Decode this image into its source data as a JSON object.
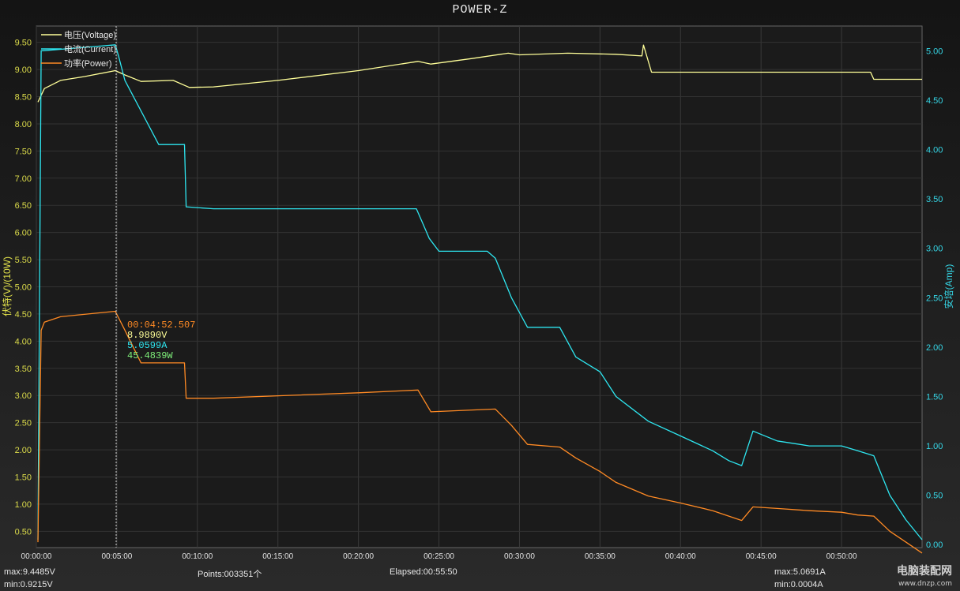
{
  "app_title": "POWER-Z",
  "chart_data": {
    "type": "line",
    "title": "POWER-Z",
    "xlabel": "",
    "ylabel_left": "伏特(V)/(10W)",
    "ylabel_right": "安培(Amp)",
    "xlim_min": [
      0,
      55
    ],
    "ylim_left": [
      0.2,
      9.8
    ],
    "ylim_right": [
      -0.03,
      5.25
    ],
    "x_ticks": [
      "00:00:00",
      "00:05:00",
      "00:10:00",
      "00:15:00",
      "00:20:00",
      "00:25:00",
      "00:30:00",
      "00:35:00",
      "00:40:00",
      "00:45:00",
      "00:50:00"
    ],
    "y_ticks_left": [
      "0.50",
      "1.00",
      "1.50",
      "2.00",
      "2.50",
      "3.00",
      "3.50",
      "4.00",
      "4.50",
      "5.00",
      "5.50",
      "6.00",
      "6.50",
      "7.00",
      "7.50",
      "8.00",
      "8.50",
      "9.00",
      "9.50"
    ],
    "y_ticks_right": [
      "0.00",
      "0.50",
      "1.00",
      "1.50",
      "2.00",
      "2.50",
      "3.00",
      "3.50",
      "4.00",
      "4.50",
      "5.00"
    ],
    "legend": [
      "电压(Voltage)",
      "电流(Current)",
      "功率(Power)"
    ],
    "legend_position": "top-left",
    "grid": true,
    "colors": {
      "voltage": "#ffff99",
      "current": "#2ee6f0",
      "power": "#ff8a24"
    },
    "series": [
      {
        "name": "电压(Voltage)",
        "axis": "left",
        "x": [
          0.1,
          0.5,
          1.5,
          3,
          4.9,
          5.5,
          6.5,
          8.5,
          9.5,
          11,
          15,
          20,
          23.7,
          24.5,
          27,
          29.3,
          30,
          33,
          36,
          37.6,
          37.7,
          38.2,
          40,
          45,
          50,
          51.8,
          52,
          55
        ],
        "y": [
          8.4,
          8.65,
          8.8,
          8.87,
          8.98,
          8.9,
          8.78,
          8.8,
          8.67,
          8.68,
          8.8,
          8.98,
          9.15,
          9.1,
          9.2,
          9.3,
          9.27,
          9.3,
          9.28,
          9.25,
          9.45,
          8.95,
          8.95,
          8.95,
          8.95,
          8.95,
          8.82,
          8.82
        ]
      },
      {
        "name": "电流(Current)",
        "axis": "right",
        "x": [
          0.1,
          0.3,
          0.4,
          4.9,
          5.1,
          5.5,
          7.6,
          9.2,
          9.3,
          11,
          20,
          23.6,
          24,
          24.4,
          25,
          28,
          28.5,
          29.5,
          30.5,
          32.5,
          33.5,
          35,
          36,
          38,
          40,
          42,
          43,
          43.8,
          44.5,
          46,
          48,
          50,
          51,
          52,
          53,
          54,
          55
        ],
        "y": [
          0.05,
          5.0,
          5.0,
          5.06,
          4.95,
          4.7,
          4.05,
          4.05,
          3.42,
          3.4,
          3.4,
          3.4,
          3.25,
          3.1,
          2.97,
          2.97,
          2.9,
          2.5,
          2.2,
          2.2,
          1.9,
          1.75,
          1.5,
          1.25,
          1.1,
          0.95,
          0.85,
          0.8,
          1.15,
          1.05,
          1.0,
          1.0,
          0.95,
          0.9,
          0.5,
          0.25,
          0.05
        ]
      },
      {
        "name": "功率(Power)",
        "axis": "left",
        "x": [
          0.1,
          0.3,
          0.5,
          1.5,
          4.9,
          5.5,
          6.5,
          9.2,
          9.3,
          11,
          20,
          23.7,
          24.5,
          28.5,
          29.5,
          30.5,
          32.5,
          33.5,
          35,
          36,
          38,
          40,
          42,
          43.8,
          44.5,
          46,
          48,
          50,
          51,
          52,
          53,
          54,
          55
        ],
        "y": [
          0.3,
          4.2,
          4.35,
          4.45,
          4.55,
          4.2,
          3.6,
          3.6,
          2.95,
          2.95,
          3.05,
          3.1,
          2.7,
          2.75,
          2.45,
          2.1,
          2.05,
          1.85,
          1.6,
          1.4,
          1.15,
          1.02,
          0.88,
          0.7,
          0.95,
          0.92,
          0.88,
          0.85,
          0.8,
          0.78,
          0.5,
          0.3,
          0.1
        ]
      }
    ],
    "cursor": {
      "x": "00:04:52.507",
      "voltage": "8.9890V",
      "current": "5.0599A",
      "power": "45.4839W"
    }
  },
  "status_bar": {
    "max_v": "max:9.4485V",
    "min_v": "min:0.9215V",
    "points": "Points:003351个",
    "elapsed": "Elapsed:00:55:50",
    "max_a": "max:5.0691A",
    "min_a": "min:0.0004A"
  },
  "watermark": {
    "brand": "电脑装配网",
    "url": "www.dnzp.com",
    "logo": "POWER-Z"
  }
}
